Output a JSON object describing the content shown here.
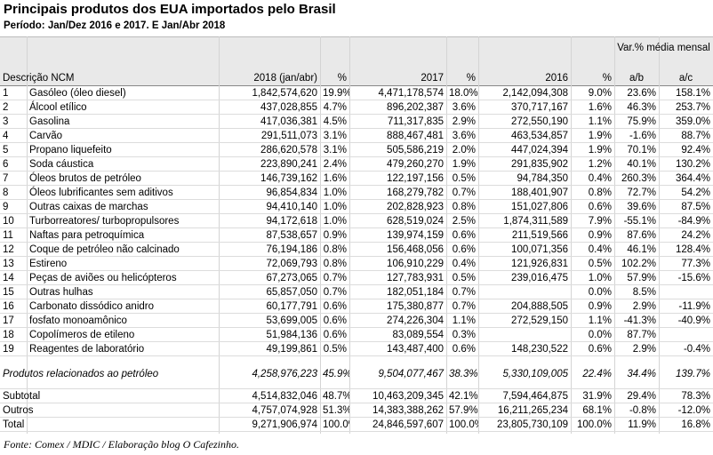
{
  "header": {
    "title": "Principais produtos dos EUA importados pelo Brasil",
    "subtitle": "Período: Jan/Dez 2016 e 2017. E Jan/Abr 2018"
  },
  "table": {
    "group_header": "Var.% média mensal",
    "columns": [
      "Descrição NCM",
      "2018 (jan/abr)",
      "%",
      "2017",
      "%",
      "2016",
      "%",
      "a/b",
      "a/c"
    ],
    "rows": [
      [
        "1",
        "Gasóleo (óleo diesel)",
        "1,842,574,620",
        "19.9%",
        "4,471,178,574",
        "18.0%",
        "2,142,094,308",
        "9.0%",
        "23.6%",
        "158.1%"
      ],
      [
        "2",
        "Álcool etílico",
        "437,028,855",
        "4.7%",
        "896,202,387",
        "3.6%",
        "370,717,167",
        "1.6%",
        "46.3%",
        "253.7%"
      ],
      [
        "3",
        "Gasolina",
        "417,036,381",
        "4.5%",
        "711,317,835",
        "2.9%",
        "272,550,190",
        "1.1%",
        "75.9%",
        "359.0%"
      ],
      [
        "4",
        "Carvão",
        "291,511,073",
        "3.1%",
        "888,467,481",
        "3.6%",
        "463,534,857",
        "1.9%",
        "-1.6%",
        "88.7%"
      ],
      [
        "5",
        "Propano liquefeito",
        "286,620,578",
        "3.1%",
        "505,586,219",
        "2.0%",
        "447,024,394",
        "1.9%",
        "70.1%",
        "92.4%"
      ],
      [
        "6",
        "Soda cáustica",
        "223,890,241",
        "2.4%",
        "479,260,270",
        "1.9%",
        "291,835,902",
        "1.2%",
        "40.1%",
        "130.2%"
      ],
      [
        "7",
        "Óleos brutos de petróleo",
        "146,739,162",
        "1.6%",
        "122,197,156",
        "0.5%",
        "94,784,350",
        "0.4%",
        "260.3%",
        "364.4%"
      ],
      [
        "8",
        "Óleos lubrificantes sem aditivos",
        "96,854,834",
        "1.0%",
        "168,279,782",
        "0.7%",
        "188,401,907",
        "0.8%",
        "72.7%",
        "54.2%"
      ],
      [
        "9",
        "Outras caixas de marchas",
        "94,410,140",
        "1.0%",
        "202,828,923",
        "0.8%",
        "151,027,806",
        "0.6%",
        "39.6%",
        "87.5%"
      ],
      [
        "10",
        "Turborreatores/ turbopropulsores",
        "94,172,618",
        "1.0%",
        "628,519,024",
        "2.5%",
        "1,874,311,589",
        "7.9%",
        "-55.1%",
        "-84.9%"
      ],
      [
        "11",
        "Naftas para petroquímica",
        "87,538,657",
        "0.9%",
        "139,974,159",
        "0.6%",
        "211,519,566",
        "0.9%",
        "87.6%",
        "24.2%"
      ],
      [
        "12",
        "Coque de petróleo não calcinado",
        "76,194,186",
        "0.8%",
        "156,468,056",
        "0.6%",
        "100,071,356",
        "0.4%",
        "46.1%",
        "128.4%"
      ],
      [
        "13",
        "Estireno",
        "72,069,793",
        "0.8%",
        "106,910,229",
        "0.4%",
        "121,926,831",
        "0.5%",
        "102.2%",
        "77.3%"
      ],
      [
        "14",
        "Peças de aviões ou helicópteros",
        "67,273,065",
        "0.7%",
        "127,783,931",
        "0.5%",
        "239,016,475",
        "1.0%",
        "57.9%",
        "-15.6%"
      ],
      [
        "15",
        "Outras hulhas",
        "65,857,050",
        "0.7%",
        "182,051,184",
        "0.7%",
        null,
        "0.0%",
        "8.5%",
        null
      ],
      [
        "16",
        "Carbonato dissódico anidro",
        "60,177,791",
        "0.6%",
        "175,380,877",
        "0.7%",
        "204,888,505",
        "0.9%",
        "2.9%",
        "-11.9%"
      ],
      [
        "17",
        "fosfato monoamônico",
        "53,699,005",
        "0.6%",
        "274,226,304",
        "1.1%",
        "272,529,150",
        "1.1%",
        "-41.3%",
        "-40.9%"
      ],
      [
        "18",
        "Copolímeros de etileno",
        "51,984,136",
        "0.6%",
        "83,089,554",
        "0.3%",
        null,
        "0.0%",
        "87.7%",
        null
      ],
      [
        "19",
        "Reagentes de laboratório",
        "49,199,861",
        "0.5%",
        "143,487,400",
        "0.6%",
        "148,230,522",
        "0.6%",
        "2.9%",
        "-0.4%"
      ]
    ],
    "petroleum_row": [
      "Produtos relacionados ao petróleo",
      "4,258,976,223",
      "45.9%",
      "9,504,077,467",
      "38.3%",
      "5,330,109,005",
      "22.4%",
      "34.4%",
      "139.7%"
    ],
    "totals": [
      [
        "Subtotal",
        "4,514,832,046",
        "48.7%",
        "10,463,209,345",
        "42.1%",
        "7,594,464,875",
        "31.9%",
        "29.4%",
        "78.3%"
      ],
      [
        "Outros",
        "4,757,074,928",
        "51.3%",
        "14,383,388,262",
        "57.9%",
        "16,211,265,234",
        "68.1%",
        "-0.8%",
        "-12.0%"
      ],
      [
        "Total",
        "9,271,906,974",
        "100.0%",
        "24,846,597,607",
        "100.0%",
        "23,805,730,109",
        "100.0%",
        "11.9%",
        "16.8%"
      ]
    ]
  },
  "footer": "Fonte: Comex / MDIC / Elaboração blog O Cafezinho."
}
